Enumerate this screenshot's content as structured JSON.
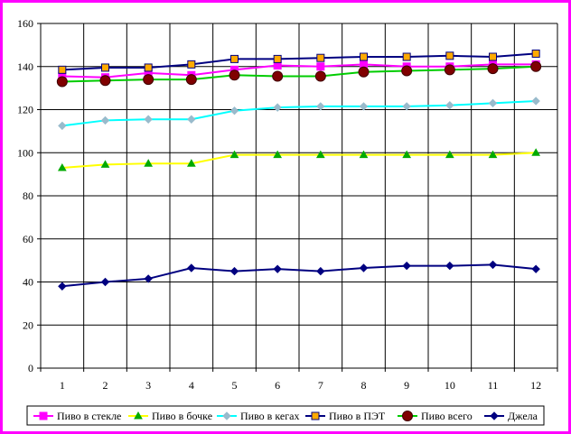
{
  "chart_data": {
    "type": "line",
    "title": "",
    "xlabel": "",
    "ylabel": "",
    "x": [
      1,
      2,
      3,
      4,
      5,
      6,
      7,
      8,
      9,
      10,
      11,
      12
    ],
    "ylim": [
      0,
      160
    ],
    "yticks": [
      0,
      20,
      40,
      60,
      80,
      100,
      120,
      140,
      160
    ],
    "grid": true,
    "legend_position": "bottom",
    "series": [
      {
        "name": "Пиво в стекле",
        "color": "#ff00ff",
        "marker": "square",
        "values": [
          135.5,
          135,
          137,
          136,
          138.5,
          140.5,
          140,
          141,
          140,
          140,
          141,
          141
        ]
      },
      {
        "name": "Пиво в бочке",
        "color": "#ffff00",
        "marker": "triangle",
        "values": [
          93,
          94.5,
          95,
          95,
          99,
          99,
          99,
          99,
          99,
          99,
          99,
          100
        ]
      },
      {
        "name": "Пиво в кегах",
        "color": "#00ffff",
        "marker": "diamond",
        "values": [
          112.5,
          115,
          115.5,
          115.5,
          119.5,
          121,
          121.5,
          121.5,
          121.5,
          122,
          123,
          124
        ]
      },
      {
        "name": "Пиво в ПЭТ",
        "color": "#000080",
        "marker": "square",
        "values": [
          138.5,
          139.5,
          139.5,
          141,
          143.5,
          143.5,
          144,
          144.5,
          144.5,
          145,
          144.5,
          146
        ]
      },
      {
        "name": "Пиво всего",
        "color": "#00cc00",
        "marker": "circle",
        "values": [
          133,
          133.5,
          134,
          134,
          136,
          135.5,
          135.5,
          137.5,
          138,
          138.5,
          139,
          140
        ]
      },
      {
        "name": "Джела",
        "color": "#000080",
        "marker": "diamond",
        "values": [
          38,
          40,
          41.5,
          46.5,
          45,
          46,
          45,
          46.5,
          47.5,
          47.5,
          48,
          46
        ]
      }
    ]
  }
}
